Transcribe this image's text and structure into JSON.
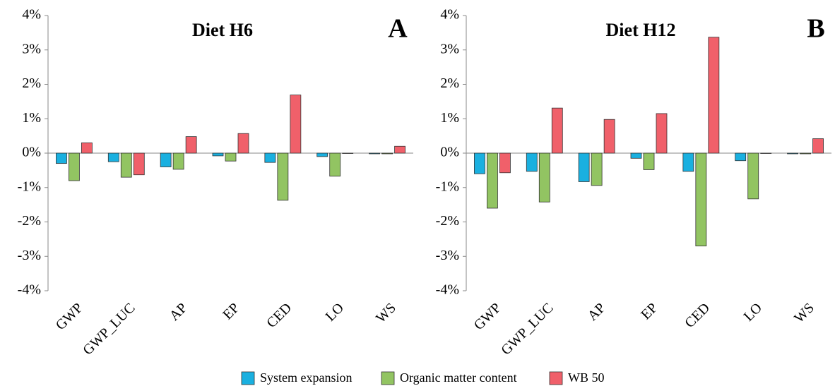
{
  "chart_data": [
    {
      "type": "bar",
      "title": "Diet H6",
      "panel_label": "A",
      "categories": [
        "GWP",
        "GWP_LUC",
        "AP",
        "EP",
        "CED",
        "LO",
        "WS"
      ],
      "series": [
        {
          "name": "System expansion",
          "color": "#1ab0e0",
          "values": [
            -0.3,
            -0.25,
            -0.4,
            -0.08,
            -0.27,
            -0.1,
            -0.02
          ]
        },
        {
          "name": "Organic matter content",
          "color": "#92c462",
          "values": [
            -0.8,
            -0.7,
            -0.47,
            -0.23,
            -1.37,
            -0.67,
            -0.02
          ]
        },
        {
          "name": "WB 50",
          "color": "#f0606a",
          "values": [
            0.3,
            -0.63,
            0.48,
            0.57,
            1.69,
            0.0,
            0.2
          ]
        }
      ],
      "ylim": [
        -4,
        4
      ],
      "yticks": [
        {
          "value": -4,
          "label": "-4%"
        },
        {
          "value": -3,
          "label": "-3%"
        },
        {
          "value": -2,
          "label": "-2%"
        },
        {
          "value": -1,
          "label": "-1%"
        },
        {
          "value": 0,
          "label": "0%"
        },
        {
          "value": 1,
          "label": "1%"
        },
        {
          "value": 2,
          "label": "2%"
        },
        {
          "value": 3,
          "label": "3%"
        },
        {
          "value": 4,
          "label": "4%"
        }
      ]
    },
    {
      "type": "bar",
      "title": "Diet H12",
      "panel_label": "B",
      "categories": [
        "GWP",
        "GWP_LUC",
        "AP",
        "EP",
        "CED",
        "LO",
        "WS"
      ],
      "series": [
        {
          "color": "#1ab0e0",
          "values": [
            -0.6,
            -0.53,
            -0.83,
            -0.15,
            -0.53,
            -0.22,
            -0.02
          ]
        },
        {
          "color": "#92c462",
          "values": [
            -1.6,
            -1.42,
            -0.94,
            -0.48,
            -2.7,
            -1.33,
            -0.02
          ]
        },
        {
          "color": "#f0606a",
          "values": [
            -0.57,
            1.31,
            0.98,
            1.15,
            3.37,
            0.0,
            0.42
          ]
        }
      ],
      "ylim": [
        -4,
        4
      ],
      "yticks": [
        {
          "value": -4,
          "label": "-4%"
        },
        {
          "value": -3,
          "label": "-3%"
        },
        {
          "value": -2,
          "label": "-2%"
        },
        {
          "value": -1,
          "label": "-1%"
        },
        {
          "value": 0,
          "label": "0%"
        },
        {
          "value": 1,
          "label": "1%"
        },
        {
          "value": 2,
          "label": "2%"
        },
        {
          "value": 3,
          "label": "3%"
        },
        {
          "value": 4,
          "label": "4%"
        }
      ]
    }
  ]
}
